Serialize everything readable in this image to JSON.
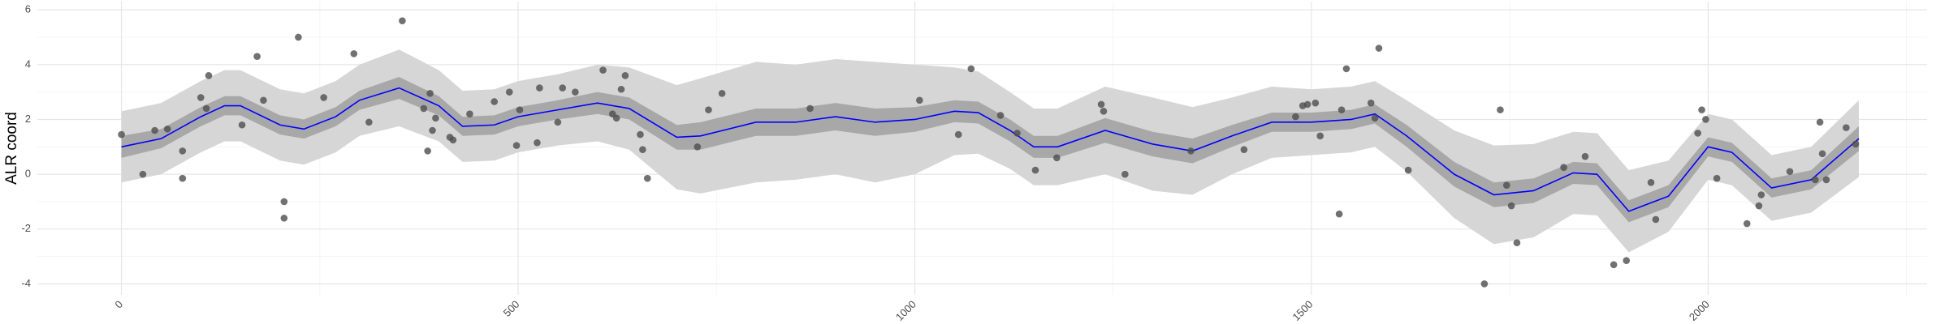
{
  "chart_data": {
    "type": "smooth",
    "y_label": "ALR coord",
    "xlim": [
      -106,
      2276
    ],
    "ylim": [
      -4.4,
      6.3
    ],
    "xticks": [
      0,
      500,
      1000,
      1500,
      2000
    ],
    "yticks": [
      -4,
      -2,
      0,
      2,
      4,
      6
    ],
    "minor_xticks": [
      250,
      750,
      1250,
      1750,
      2250
    ],
    "minor_yticks": [
      -3,
      -1,
      1,
      3,
      5
    ],
    "grid": true,
    "point_color": "#4d4d4d",
    "line_color": "#0000ff",
    "inner_band_color": "#a8a8a8",
    "outer_band_color": "#d6d6d6",
    "points": {
      "x": [
        0,
        27,
        42,
        58,
        77,
        77,
        100,
        107,
        110,
        152,
        171,
        179,
        205,
        205,
        223,
        255,
        293,
        312,
        354,
        381,
        386,
        389,
        392,
        396,
        414,
        418,
        439,
        470,
        489,
        498,
        502,
        524,
        527,
        550,
        556,
        572,
        607,
        619,
        624,
        630,
        635,
        654,
        657,
        663,
        726,
        740,
        757,
        868,
        1006,
        1055,
        1071,
        1108,
        1129,
        1152,
        1179,
        1235,
        1238,
        1265,
        1348,
        1415,
        1480,
        1489,
        1495,
        1505,
        1511,
        1535,
        1538,
        1544,
        1575,
        1580,
        1585,
        1622,
        1718,
        1738,
        1746,
        1752,
        1759,
        1818,
        1845,
        1881,
        1897,
        1928,
        1934,
        1987,
        1992,
        1997,
        2011,
        2049,
        2064,
        2067,
        2103,
        2135,
        2141,
        2144,
        2149,
        2174,
        2186
      ],
      "y": [
        1.45,
        0.0,
        1.6,
        1.65,
        0.85,
        -0.15,
        2.8,
        2.4,
        3.6,
        1.8,
        4.3,
        2.7,
        -1.0,
        -1.6,
        5.0,
        2.8,
        4.4,
        1.9,
        5.6,
        2.4,
        0.85,
        2.95,
        1.6,
        2.05,
        1.35,
        1.25,
        2.2,
        2.65,
        3.0,
        1.05,
        2.35,
        1.15,
        3.15,
        1.9,
        3.15,
        3.0,
        3.8,
        2.2,
        2.05,
        3.1,
        3.6,
        1.45,
        0.9,
        -0.15,
        1.0,
        2.35,
        2.95,
        2.4,
        2.7,
        1.45,
        3.85,
        2.15,
        1.5,
        0.15,
        0.6,
        2.55,
        2.3,
        0.0,
        0.85,
        0.9,
        2.1,
        2.5,
        2.55,
        2.6,
        1.4,
        -1.45,
        2.35,
        3.85,
        2.6,
        2.05,
        4.6,
        0.15,
        -4.0,
        2.35,
        -0.4,
        -1.15,
        -2.5,
        0.25,
        0.65,
        -3.3,
        -3.15,
        -0.3,
        -1.65,
        1.5,
        2.35,
        2.0,
        -0.15,
        -1.8,
        -1.15,
        -0.75,
        0.1,
        -0.2,
        1.9,
        0.75,
        -0.2,
        1.7,
        1.1
      ]
    },
    "fit": {
      "x": [
        0,
        50,
        100,
        130,
        150,
        200,
        230,
        270,
        300,
        350,
        400,
        430,
        470,
        500,
        550,
        600,
        640,
        700,
        730,
        800,
        850,
        900,
        950,
        1000,
        1050,
        1080,
        1120,
        1150,
        1180,
        1240,
        1300,
        1350,
        1400,
        1450,
        1500,
        1550,
        1580,
        1620,
        1680,
        1730,
        1780,
        1830,
        1860,
        1900,
        1950,
        2000,
        2030,
        2080,
        2130,
        2190
      ],
      "y": [
        1.0,
        1.3,
        2.1,
        2.5,
        2.5,
        1.8,
        1.65,
        2.1,
        2.7,
        3.15,
        2.5,
        1.75,
        1.8,
        2.1,
        2.35,
        2.6,
        2.4,
        1.35,
        1.4,
        1.9,
        1.9,
        2.1,
        1.9,
        2.0,
        2.3,
        2.25,
        1.6,
        1.0,
        1.0,
        1.6,
        1.1,
        0.85,
        1.4,
        1.9,
        1.9,
        2.0,
        2.2,
        1.4,
        0.0,
        -0.75,
        -0.6,
        0.05,
        0.0,
        -1.35,
        -0.8,
        1.0,
        0.8,
        -0.5,
        -0.2,
        1.3
      ],
      "inner_lower": [
        0.6,
        0.95,
        1.75,
        2.15,
        2.15,
        1.45,
        1.3,
        1.75,
        2.35,
        2.75,
        2.15,
        1.4,
        1.45,
        1.75,
        2.0,
        2.2,
        2.0,
        0.9,
        0.9,
        1.4,
        1.4,
        1.6,
        1.4,
        1.55,
        1.9,
        1.85,
        1.2,
        0.6,
        0.6,
        1.15,
        0.65,
        0.4,
        1.0,
        1.55,
        1.55,
        1.65,
        1.85,
        1.0,
        -0.45,
        -1.2,
        -1.05,
        -0.35,
        -0.4,
        -1.75,
        -1.2,
        0.65,
        0.45,
        -0.85,
        -0.55,
        0.85
      ],
      "inner_upper": [
        1.4,
        1.65,
        2.45,
        2.85,
        2.85,
        2.15,
        2.0,
        2.45,
        3.05,
        3.55,
        2.85,
        2.1,
        2.15,
        2.45,
        2.7,
        3.0,
        2.8,
        1.8,
        1.9,
        2.4,
        2.4,
        2.6,
        2.4,
        2.45,
        2.7,
        2.65,
        2.0,
        1.4,
        1.4,
        2.05,
        1.55,
        1.3,
        1.8,
        2.25,
        2.25,
        2.35,
        2.55,
        1.8,
        0.45,
        -0.3,
        -0.15,
        0.45,
        0.4,
        -0.95,
        -0.4,
        1.35,
        1.15,
        -0.15,
        0.15,
        1.75
      ],
      "outer_lower": [
        -0.3,
        0.0,
        0.8,
        1.2,
        1.2,
        0.5,
        0.35,
        0.8,
        1.4,
        1.75,
        1.2,
        0.45,
        0.5,
        0.8,
        1.05,
        1.2,
        0.9,
        -0.55,
        -0.7,
        -0.3,
        -0.2,
        0.0,
        -0.3,
        0.0,
        0.7,
        0.75,
        0.2,
        -0.4,
        -0.4,
        0.0,
        -0.6,
        -0.75,
        0.0,
        0.6,
        0.7,
        0.8,
        1.0,
        0.1,
        -1.6,
        -2.55,
        -2.3,
        -1.45,
        -1.5,
        -2.85,
        -2.1,
        -0.2,
        -0.4,
        -1.7,
        -1.4,
        -0.1
      ],
      "outer_upper": [
        2.3,
        2.6,
        3.4,
        3.8,
        3.8,
        3.1,
        2.95,
        3.4,
        4.0,
        4.55,
        3.8,
        3.05,
        3.1,
        3.4,
        3.65,
        4.0,
        3.9,
        3.25,
        3.5,
        4.1,
        4.0,
        4.2,
        4.1,
        4.0,
        3.9,
        3.75,
        3.0,
        2.4,
        2.4,
        3.2,
        2.8,
        2.45,
        2.8,
        3.2,
        3.1,
        3.2,
        3.4,
        2.7,
        1.6,
        1.05,
        1.1,
        1.55,
        1.5,
        0.15,
        0.5,
        2.2,
        2.0,
        0.7,
        1.0,
        2.7
      ]
    }
  }
}
